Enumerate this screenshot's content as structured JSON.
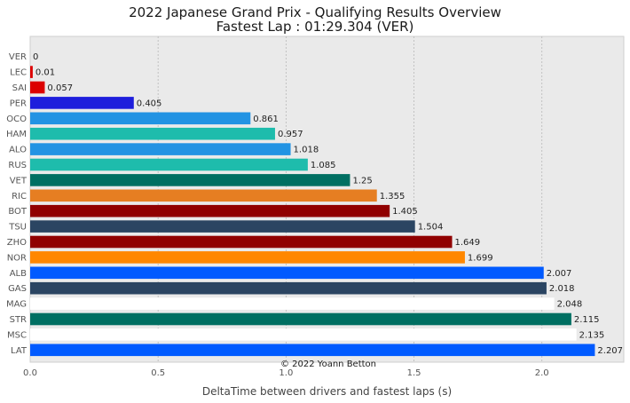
{
  "chart_data": {
    "type": "bar",
    "orientation": "horizontal",
    "title": "2022 Japanese Grand Prix - Qualifying Results Overview",
    "subtitle": "Fastest Lap : 01:29.304 (VER)",
    "xlabel": "DeltaTime between drivers and fastest laps (s)",
    "ylabel": "",
    "xlim": [
      0,
      2.32
    ],
    "xticks": [
      "0.0",
      "0.5",
      "1.0",
      "1.5",
      "2.0"
    ],
    "grid": true,
    "annotation": "© 2022 Yoann Betton",
    "categories": [
      "VER",
      "LEC",
      "SAI",
      "PER",
      "OCO",
      "HAM",
      "ALO",
      "RUS",
      "VET",
      "RIC",
      "BOT",
      "TSU",
      "ZHO",
      "NOR",
      "ALB",
      "GAS",
      "MAG",
      "STR",
      "MSC",
      "LAT"
    ],
    "values": [
      0,
      0.01,
      0.057,
      0.405,
      0.861,
      0.957,
      1.018,
      1.085,
      1.25,
      1.355,
      1.405,
      1.504,
      1.649,
      1.699,
      2.007,
      2.018,
      2.048,
      2.115,
      2.135,
      2.207
    ],
    "value_labels": [
      "0",
      "0.01",
      "0.057",
      "0.405",
      "0.861",
      "0.957",
      "1.018",
      "1.085",
      "1.25",
      "1.355",
      "1.405",
      "1.504",
      "1.649",
      "1.699",
      "2.007",
      "2.018",
      "2.048",
      "2.115",
      "2.135",
      "2.207"
    ],
    "colors": [
      "#1e41ff",
      "#dc0000",
      "#dc0000",
      "#1e1edc",
      "#2293e3",
      "#1ebcac",
      "#2293e3",
      "#1ebcac",
      "#006f62",
      "#e67e22",
      "#900000",
      "#2b4562",
      "#900000",
      "#ff8700",
      "#005aff",
      "#2b4562",
      "#ffffff",
      "#006f62",
      "#ffffff",
      "#005aff"
    ]
  }
}
